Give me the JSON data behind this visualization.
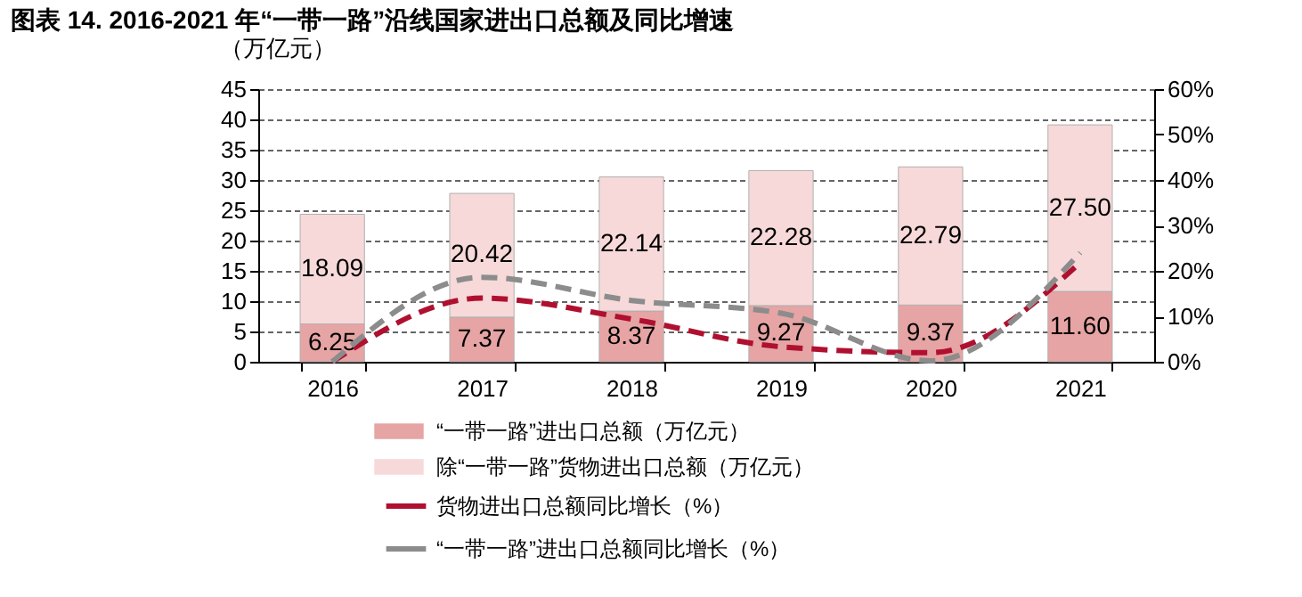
{
  "chart_data": {
    "type": "bar",
    "title": "图表 14. 2016-2021 年“一带一路”沿线国家进出口总额及同比增速",
    "ylabel": "（万亿元）",
    "categories": [
      "2016",
      "2017",
      "2018",
      "2019",
      "2020",
      "2021"
    ],
    "stacked": true,
    "series": [
      {
        "name": "“一带一路”进出口总额（万亿元）",
        "color": "#e6a4a4",
        "values": [
          6.25,
          7.37,
          8.37,
          9.27,
          9.37,
          11.6
        ],
        "value_labels": [
          "6.25",
          "7.37",
          "8.37",
          "9.27",
          "9.37",
          "11.60"
        ]
      },
      {
        "name": "除“一带一路”货物进出口总额（万亿元）",
        "color": "#f7d9d9",
        "values": [
          18.09,
          20.42,
          22.14,
          22.28,
          22.79,
          27.5
        ],
        "value_labels": [
          "18.09",
          "20.42",
          "22.14",
          "22.28",
          "22.79",
          "27.50"
        ]
      },
      {
        "name": "货物进出口总额同比增长（%）",
        "type": "line",
        "axis": "y2",
        "color": "#b01030",
        "line_style": "dashed",
        "values": [
          0,
          14.0,
          9.4,
          3.3,
          2.0,
          21.8
        ]
      },
      {
        "name": "“一带一路”进出口总额同比增长（%）",
        "type": "line",
        "axis": "y2",
        "color": "#8c8c8c",
        "line_style": "dashed",
        "values": [
          0,
          18.6,
          13.5,
          10.7,
          0.2,
          24.0
        ]
      }
    ],
    "ylim": [
      0,
      45
    ],
    "yticks": [
      0,
      5,
      10,
      15,
      20,
      25,
      30,
      35,
      40,
      45
    ],
    "y2lim": [
      0,
      60
    ],
    "y2ticks": [
      {
        "value": 0,
        "label": "0%"
      },
      {
        "value": 10,
        "label": "10%"
      },
      {
        "value": 20,
        "label": "20%"
      },
      {
        "value": 30,
        "label": "30%"
      },
      {
        "value": 40,
        "label": "40%"
      },
      {
        "value": 50,
        "label": "50%"
      },
      {
        "value": 60,
        "label": "60%"
      }
    ],
    "grid": "y",
    "legend": "bottom"
  }
}
